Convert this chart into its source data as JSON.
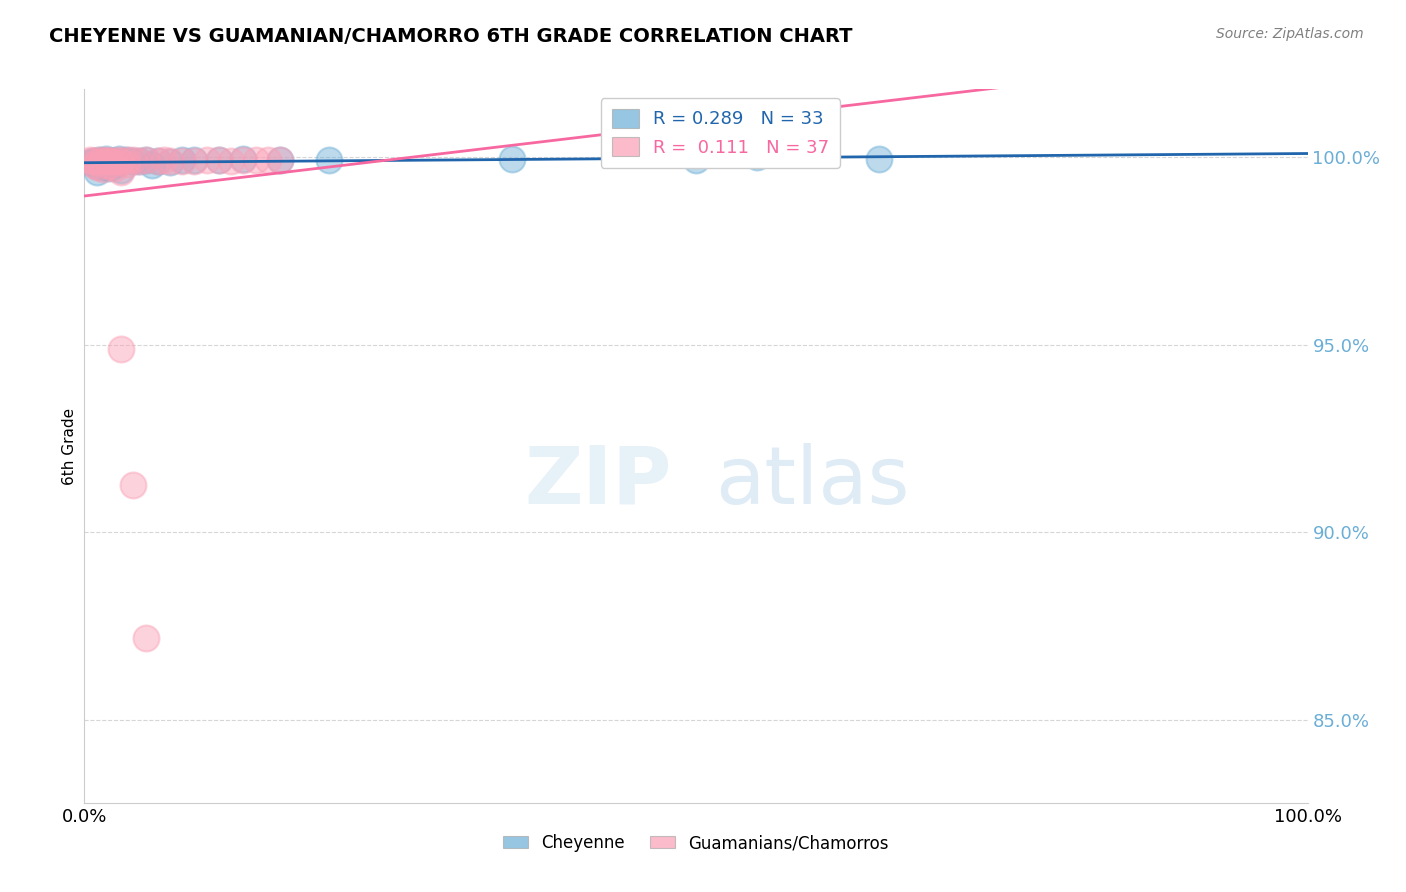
{
  "title": "CHEYENNE VS GUAMANIAN/CHAMORRO 6TH GRADE CORRELATION CHART",
  "source": "Source: ZipAtlas.com",
  "ylabel": "6th Grade",
  "xlabel": "",
  "xlim": [
    0.0,
    1.0
  ],
  "ylim": [
    0.828,
    1.018
  ],
  "yticks": [
    0.85,
    0.9,
    0.95,
    1.0
  ],
  "ytick_labels": [
    "85.0%",
    "90.0%",
    "95.0%",
    "100.0%"
  ],
  "xticks": [
    0.0,
    0.25,
    0.5,
    0.75,
    1.0
  ],
  "xtick_labels": [
    "0.0%",
    "",
    "",
    "",
    "100.0%"
  ],
  "legend_labels": [
    "Cheyenne",
    "Guamanians/Chamorros"
  ],
  "blue_R": "R = 0.289",
  "blue_N": "N = 33",
  "pink_R": "R =  0.111",
  "pink_N": "N = 37",
  "blue_color": "#6baed6",
  "pink_color": "#fa9fb5",
  "blue_line_color": "#2166ac",
  "pink_line_color": "#f768a1",
  "blue_scatter_x": [
    0.005,
    0.008,
    0.01,
    0.01,
    0.012,
    0.015,
    0.015,
    0.018,
    0.02,
    0.02,
    0.022,
    0.025,
    0.025,
    0.028,
    0.03,
    0.03,
    0.035,
    0.04,
    0.045,
    0.05,
    0.055,
    0.06,
    0.07,
    0.08,
    0.09,
    0.11,
    0.13,
    0.16,
    0.2,
    0.35,
    0.5,
    0.55,
    0.65
  ],
  "blue_scatter_y": [
    0.9985,
    0.999,
    0.9975,
    0.996,
    0.9992,
    0.9988,
    0.9972,
    0.9995,
    0.9985,
    0.997,
    0.999,
    0.9988,
    0.9978,
    0.9995,
    0.9985,
    0.9965,
    0.9992,
    0.999,
    0.9988,
    0.9992,
    0.9978,
    0.999,
    0.9985,
    0.9992,
    0.9992,
    0.9992,
    0.9995,
    0.9992,
    0.9992,
    0.9995,
    0.9992,
    1.0,
    0.9995
  ],
  "pink_scatter_x": [
    0.005,
    0.007,
    0.008,
    0.01,
    0.01,
    0.012,
    0.015,
    0.015,
    0.018,
    0.02,
    0.02,
    0.022,
    0.025,
    0.025,
    0.028,
    0.03,
    0.03,
    0.035,
    0.035,
    0.04,
    0.045,
    0.05,
    0.06,
    0.065,
    0.07,
    0.08,
    0.09,
    0.1,
    0.11,
    0.12,
    0.13,
    0.14,
    0.15,
    0.16,
    0.03,
    0.04,
    0.05
  ],
  "pink_scatter_y": [
    0.9992,
    0.9988,
    0.9978,
    0.9985,
    0.9972,
    0.9992,
    0.9988,
    0.9968,
    0.9992,
    0.9988,
    0.9975,
    0.999,
    0.9988,
    0.997,
    0.9992,
    0.9985,
    0.996,
    0.9992,
    0.9982,
    0.9992,
    0.9988,
    0.9992,
    0.9988,
    0.9992,
    0.9988,
    0.999,
    0.999,
    0.9992,
    0.9992,
    0.999,
    0.9992,
    0.9992,
    0.9992,
    0.9992,
    0.9488,
    0.9125,
    0.872
  ],
  "background_color": "#ffffff",
  "grid_color": "#cccccc"
}
